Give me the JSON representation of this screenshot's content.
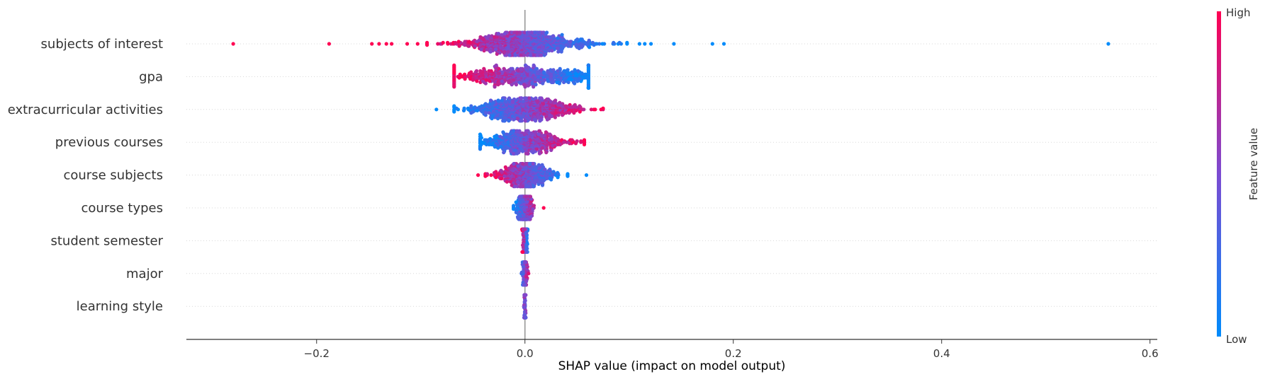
{
  "chart_data": {
    "type": "scatter",
    "subtype": "beeswarm",
    "title": "",
    "xlabel": "SHAP value (impact on model output)",
    "ylabel": "",
    "xlim": [
      -0.325,
      0.607
    ],
    "xticks": [
      -0.2,
      0.0,
      0.2,
      0.4,
      0.6
    ],
    "xtick_labels": [
      "−0.2",
      "0.0",
      "0.2",
      "0.4",
      "0.6"
    ],
    "zero_line": 0.0,
    "grid": "dotted horizontal per feature",
    "colorbar": {
      "title": "Feature value",
      "high_label": "High",
      "low_label": "Low",
      "low_color": "#008bfb",
      "high_color": "#ff0052"
    },
    "features": [
      {
        "name": "subjects of interest",
        "range": [
          -0.28,
          0.56
        ],
        "core_sd": 0.03,
        "density": 1.0,
        "high_side": "negative",
        "outliers": [
          {
            "x": -0.28,
            "c": 1
          },
          {
            "x": -0.188,
            "c": 1
          },
          {
            "x": -0.147,
            "c": 1
          },
          {
            "x": -0.14,
            "c": 1
          },
          {
            "x": -0.133,
            "c": 1
          },
          {
            "x": -0.128,
            "c": 1
          },
          {
            "x": -0.113,
            "c": 1
          },
          {
            "x": -0.103,
            "c": 1
          },
          {
            "x": -0.094,
            "c": 1
          },
          {
            "x": 0.098,
            "c": 0
          },
          {
            "x": 0.11,
            "c": 0
          },
          {
            "x": 0.115,
            "c": 0
          },
          {
            "x": 0.121,
            "c": 0
          },
          {
            "x": 0.143,
            "c": 0
          },
          {
            "x": 0.18,
            "c": 0
          },
          {
            "x": 0.191,
            "c": 0
          },
          {
            "x": 0.56,
            "c": 0
          }
        ]
      },
      {
        "name": "gpa",
        "range": [
          -0.068,
          0.061
        ],
        "core_sd": 0.035,
        "density": 0.75,
        "high_side": "negative",
        "outliers": []
      },
      {
        "name": "extracurricular activities",
        "range": [
          -0.085,
          0.075
        ],
        "core_sd": 0.025,
        "density": 0.8,
        "high_side": "positive",
        "outliers": [
          {
            "x": -0.085,
            "c": 0
          },
          {
            "x": -0.068,
            "c": 0
          }
        ]
      },
      {
        "name": "previous courses",
        "range": [
          -0.043,
          0.057
        ],
        "core_sd": 0.02,
        "density": 0.6,
        "high_side": "positive",
        "outliers": [
          {
            "x": 0.057,
            "c": 1
          }
        ]
      },
      {
        "name": "course subjects",
        "range": [
          -0.045,
          0.059
        ],
        "core_sd": 0.014,
        "density": 0.5,
        "high_side": "negative",
        "outliers": [
          {
            "x": -0.045,
            "c": 1
          },
          {
            "x": -0.038,
            "c": 1
          },
          {
            "x": 0.041,
            "c": 0
          },
          {
            "x": 0.059,
            "c": 0
          }
        ]
      },
      {
        "name": "course types",
        "range": [
          -0.011,
          0.018
        ],
        "core_sd": 0.004,
        "density": 0.3,
        "high_side": "positive",
        "outliers": [
          {
            "x": 0.018,
            "c": 1
          }
        ]
      },
      {
        "name": "student semester",
        "range": [
          -0.003,
          0.003
        ],
        "core_sd": 0.001,
        "density": 0.3,
        "high_side": "negative",
        "outliers": []
      },
      {
        "name": "major",
        "range": [
          -0.005,
          0.005
        ],
        "core_sd": 0.001,
        "density": 0.2,
        "high_side": "positive",
        "outliers": []
      },
      {
        "name": "learning style",
        "range": [
          -0.001,
          0.001
        ],
        "core_sd": 0.0004,
        "density": 0.15,
        "high_side": "none",
        "outliers": []
      }
    ]
  }
}
